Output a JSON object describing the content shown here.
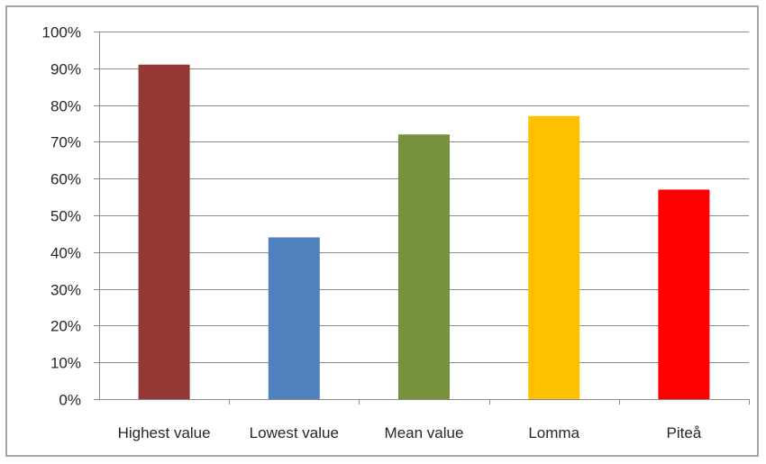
{
  "chart_data": {
    "type": "bar",
    "categories": [
      "Highest value",
      "Lowest value",
      "Mean value",
      "Lomma",
      "Piteå"
    ],
    "values": [
      91,
      44,
      72,
      77,
      57
    ],
    "colors": [
      "#953735",
      "#4f81bd",
      "#76923c",
      "#ffc000",
      "#ff0000"
    ],
    "ylim": [
      0,
      100
    ],
    "yticks": [
      0,
      10,
      20,
      30,
      40,
      50,
      60,
      70,
      80,
      90,
      100
    ],
    "ytick_labels": [
      "0%",
      "10%",
      "20%",
      "30%",
      "40%",
      "50%",
      "60%",
      "70%",
      "80%",
      "90%",
      "100%"
    ],
    "grid": true,
    "title": "",
    "xlabel": "",
    "ylabel": ""
  }
}
